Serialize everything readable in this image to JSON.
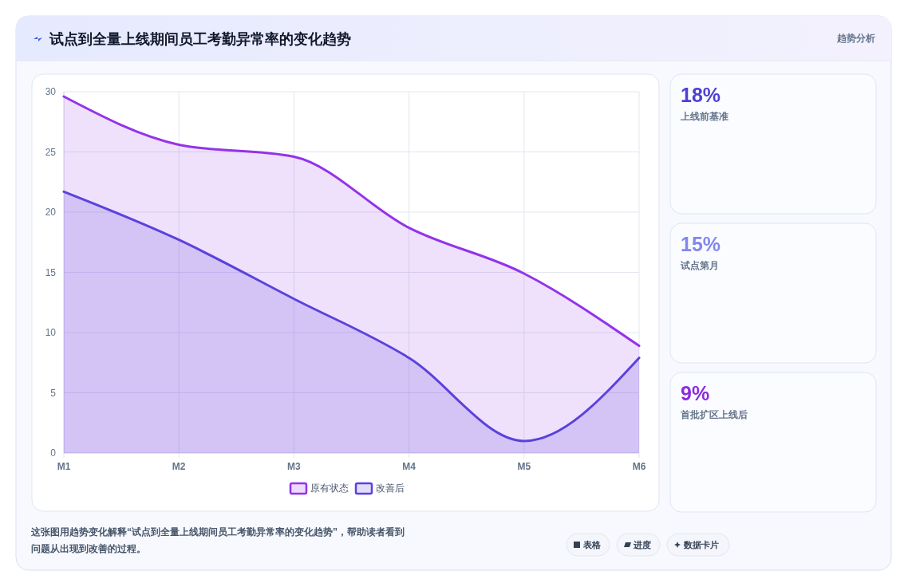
{
  "chart_data": [
    {
      "type": "area",
      "title": "试点到全量上线期间员工考勤异常率的变化趋势",
      "categories": [
        "M1",
        "M2",
        "M3",
        "M4",
        "M5",
        "M6"
      ],
      "series": [
        {
          "name": "原有状态",
          "color": "#9333ea",
          "values": [
            29.6,
            25.6,
            24.6,
            18.7,
            14.9,
            8.9
          ]
        },
        {
          "name": "改善后",
          "color": "#5b42dc",
          "values": [
            21.7,
            17.7,
            12.8,
            7.9,
            1.0,
            7.9
          ]
        }
      ],
      "ylim": [
        0,
        30
      ],
      "yticks": [
        0,
        5,
        10,
        15,
        20,
        25,
        30
      ],
      "grid": true,
      "legend": "bottom",
      "annotations": [
        "这张图用趋势变化解释“试点到全量上线期间员工考勤异常率的变化趋势”，帮助读者看到问题从出现到改善的过程。",
        "表格",
        "进度",
        "数据卡片"
      ]
    },
    {
      "type": "other",
      "title": "趋势分析",
      "annotations": [
        "18%",
        "上线前基准",
        "15%",
        "试点第月",
        "9%",
        "首批扩区上线后"
      ]
    }
  ]
}
